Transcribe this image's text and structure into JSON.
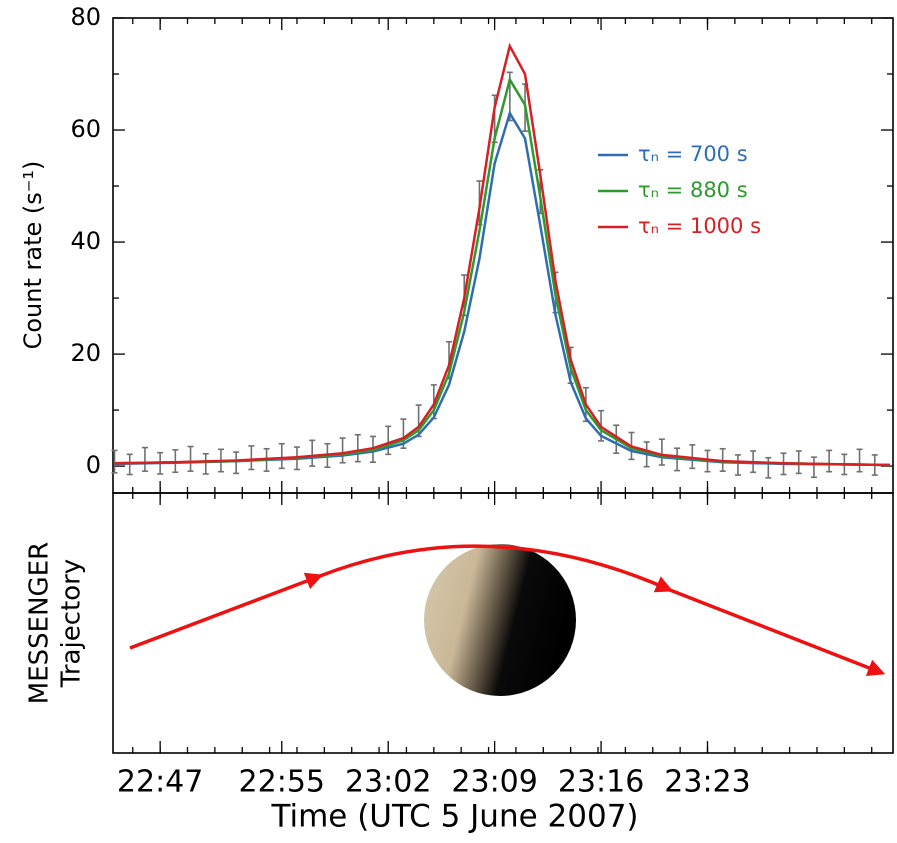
{
  "chart_data": {
    "type": "line",
    "y_label": "Count rate (s⁻¹)",
    "x_label": "Time (UTC 5 June 2007)",
    "trajectory_label": [
      "MESSENGER",
      "Trajectory"
    ],
    "xlim": [
      1363.9,
      1415.2
    ],
    "xticks": [
      {
        "value": 1367,
        "label": "22:47"
      },
      {
        "value": 1375,
        "label": "22:55"
      },
      {
        "value": 1382,
        "label": "23:02"
      },
      {
        "value": 1389,
        "label": "23:09"
      },
      {
        "value": 1396,
        "label": "23:16"
      },
      {
        "value": 1403,
        "label": "23:23"
      }
    ],
    "ylim": [
      -4.8,
      80
    ],
    "yticks": [
      0,
      20,
      40,
      60,
      80
    ],
    "legend": "right",
    "x": [
      1364,
      1368,
      1372,
      1376,
      1379,
      1381,
      1383,
      1384,
      1385,
      1386,
      1387,
      1388,
      1389,
      1390,
      1391,
      1392,
      1393,
      1394,
      1395,
      1396,
      1398,
      1400,
      1404,
      1408,
      1412,
      1415
    ],
    "series": [
      {
        "name": "τₙ = 700 s",
        "color": "#2f6db3",
        "values": [
          0.4,
          0.6,
          0.9,
          1.3,
          1.9,
          2.6,
          4,
          5.6,
          8.7,
          14.5,
          24,
          37,
          54,
          63,
          58.5,
          43,
          27,
          15,
          8.5,
          5.4,
          2.7,
          1.6,
          0.7,
          0.4,
          0.3,
          0.2
        ]
      },
      {
        "name": "τₙ = 880 s",
        "color": "#2e9a2e",
        "values": [
          0.5,
          0.7,
          0.9,
          1.5,
          2.1,
          2.9,
          4.6,
          6.4,
          10,
          16.5,
          27.5,
          42,
          58.5,
          69,
          64.5,
          48,
          30.5,
          17.5,
          10,
          6.4,
          3.2,
          1.8,
          0.8,
          0.5,
          0.3,
          0.2
        ]
      },
      {
        "name": "τₙ = 1000 s",
        "color": "#d62024",
        "values": [
          0.5,
          0.7,
          1.0,
          1.6,
          2.3,
          3.2,
          5,
          7,
          11,
          18,
          30,
          46,
          64,
          75,
          70,
          52,
          33,
          19,
          11,
          7,
          3.5,
          2,
          0.9,
          0.5,
          0.3,
          0.2
        ]
      }
    ],
    "measured": {
      "color": "#707070",
      "x": [
        1364,
        1365,
        1366,
        1367,
        1368,
        1369,
        1370,
        1371,
        1372,
        1373,
        1374,
        1375,
        1376,
        1377,
        1378,
        1379,
        1380,
        1381,
        1382,
        1383,
        1384,
        1385,
        1386,
        1387,
        1388,
        1389,
        1390,
        1391,
        1392,
        1393,
        1394,
        1395,
        1396,
        1397,
        1398,
        1399,
        1400,
        1401,
        1402,
        1403,
        1404,
        1405,
        1406,
        1407,
        1408,
        1409,
        1410,
        1411,
        1412,
        1413,
        1414
      ],
      "values": [
        0.8,
        0.3,
        1.2,
        0.5,
        0.9,
        1.3,
        0.4,
        1.0,
        0.6,
        1.5,
        1.1,
        1.8,
        1.4,
        2.3,
        1.9,
        2.8,
        3.2,
        3.0,
        4.6,
        5.8,
        8.1,
        11.5,
        18.9,
        30.5,
        47,
        62,
        66,
        64,
        49,
        31,
        18,
        11,
        7.2,
        4.8,
        3.6,
        2.1,
        2.5,
        1.2,
        1.7,
        0.9,
        1.1,
        0.2,
        0.8,
        -0.3,
        0.4,
        0.7,
        -0.2,
        0.9,
        0.3,
        1.0,
        0.2
      ],
      "errors": [
        2.0,
        1.8,
        2.1,
        1.9,
        2.0,
        2.2,
        1.8,
        2.0,
        1.9,
        2.1,
        2.0,
        2.2,
        2.0,
        2.3,
        2.1,
        2.2,
        2.4,
        2.3,
        2.5,
        2.6,
        2.8,
        3.0,
        3.3,
        3.6,
        3.9,
        4.2,
        4.3,
        4.2,
        3.9,
        3.6,
        3.2,
        3.0,
        2.7,
        2.5,
        2.4,
        2.2,
        2.3,
        2.0,
        2.1,
        1.9,
        2.0,
        1.8,
        1.9,
        1.8,
        1.9,
        2.0,
        1.8,
        1.9,
        1.8,
        2.0,
        1.8
      ]
    }
  }
}
